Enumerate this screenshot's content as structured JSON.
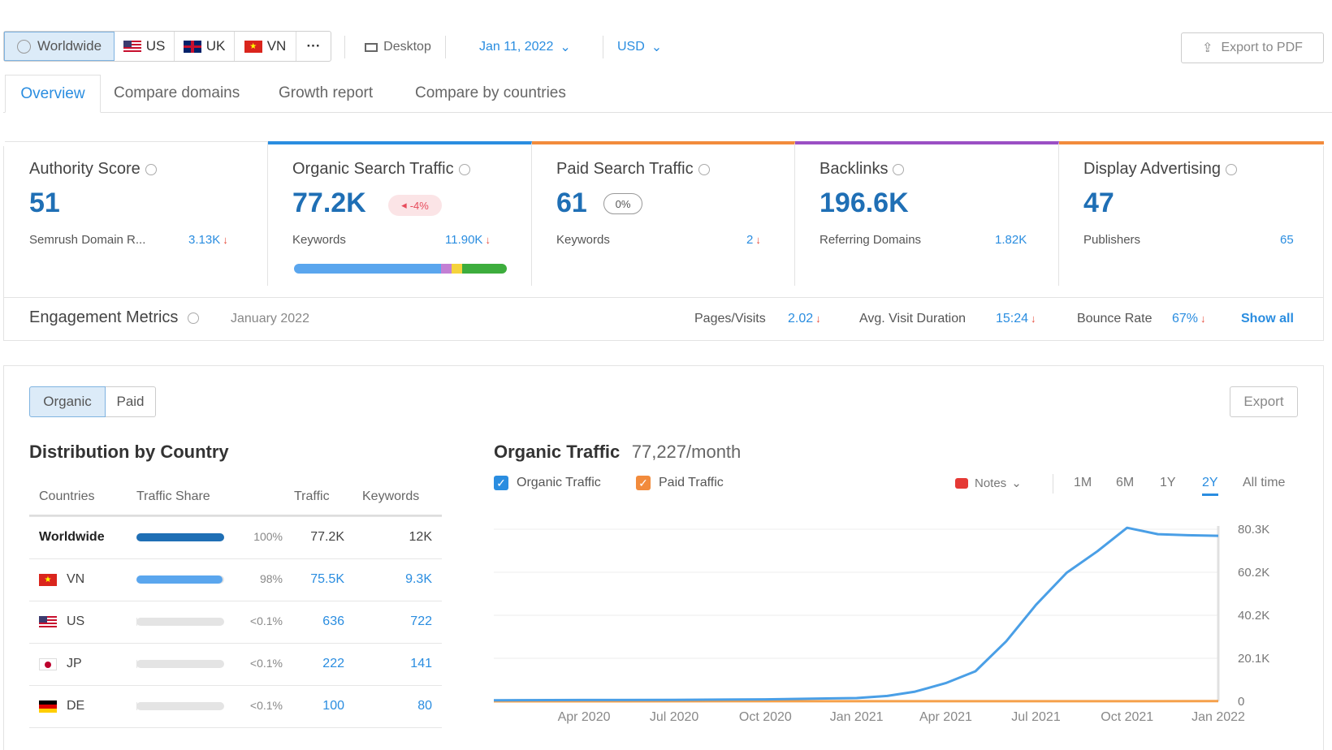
{
  "filters": {
    "regions": [
      "Worldwide",
      "US",
      "UK",
      "VN"
    ],
    "more": "···",
    "device": "Desktop",
    "date": "Jan 11, 2022",
    "currency": "USD",
    "export_pdf": "Export to PDF"
  },
  "tabs": [
    "Overview",
    "Compare domains",
    "Growth report",
    "Compare by countries"
  ],
  "cards": [
    {
      "title": "Authority Score",
      "value": "51",
      "sub_label": "Semrush Domain R...",
      "sub_value": "3.13K",
      "accent": "#e3e3e3"
    },
    {
      "title": "Organic Search Traffic",
      "value": "77.2K",
      "badge": "-4%",
      "sub_label": "Keywords",
      "sub_value": "11.90K",
      "accent": "#2a8de0"
    },
    {
      "title": "Paid Search Traffic",
      "value": "61",
      "badge": "0%",
      "sub_label": "Keywords",
      "sub_value": "2",
      "accent": "#f28b3c"
    },
    {
      "title": "Backlinks",
      "value": "196.6K",
      "sub_label": "Referring Domains",
      "sub_value": "1.82K",
      "accent": "#9b4fc4"
    },
    {
      "title": "Display Advertising",
      "value": "47",
      "sub_label": "Publishers",
      "sub_value": "65",
      "accent": "#f28b3c"
    }
  ],
  "keyword_distribution": [
    {
      "share": 69,
      "color": "#5aa6ee"
    },
    {
      "share": 5,
      "color": "#c37fd4"
    },
    {
      "share": 5,
      "color": "#f5d33c"
    },
    {
      "share": 21,
      "color": "#3dad3d"
    }
  ],
  "engagement": {
    "title": "Engagement Metrics",
    "period": "January 2022",
    "pages_label": "Pages/Visits",
    "pages_value": "2.02",
    "duration_label": "Avg. Visit Duration",
    "duration_value": "15:24",
    "bounce_label": "Bounce Rate",
    "bounce_value": "67%",
    "show_all": "Show all"
  },
  "toggle": {
    "organic": "Organic",
    "paid": "Paid",
    "export": "Export"
  },
  "distribution": {
    "title": "Distribution by Country",
    "headers": [
      "Countries",
      "Traffic Share",
      "Traffic",
      "Keywords"
    ],
    "rows": [
      {
        "country": "Worldwide",
        "flag": "globe",
        "share": "100%",
        "share_value": 100,
        "traffic": "77.2K",
        "keywords": "12K"
      },
      {
        "country": "VN",
        "flag": "vn",
        "share": "98%",
        "share_value": 98,
        "traffic": "75.5K",
        "keywords": "9.3K"
      },
      {
        "country": "US",
        "flag": "us",
        "share": "<0.1%",
        "share_value": 0.1,
        "traffic": "636",
        "keywords": "722"
      },
      {
        "country": "JP",
        "flag": "jp",
        "share": "<0.1%",
        "share_value": 0.1,
        "traffic": "222",
        "keywords": "141"
      },
      {
        "country": "DE",
        "flag": "de",
        "share": "<0.1%",
        "share_value": 0.1,
        "traffic": "100",
        "keywords": "80"
      }
    ]
  },
  "traffic_chart": {
    "title": "Organic Traffic",
    "subtitle": "77,227/month",
    "legend": [
      "Organic Traffic",
      "Paid Traffic"
    ],
    "notes": "Notes",
    "ranges": [
      "1M",
      "6M",
      "1Y",
      "2Y",
      "All time"
    ],
    "active_range": "2Y"
  },
  "chart_data": {
    "type": "line",
    "title": "Organic Traffic",
    "x_ticks": [
      "Apr 2020",
      "Jul 2020",
      "Oct 2020",
      "Jan 2021",
      "Apr 2021",
      "Jul 2021",
      "Oct 2021",
      "Jan 2022"
    ],
    "y_ticks": [
      "0",
      "20.1K",
      "40.2K",
      "60.2K",
      "80.3K"
    ],
    "ylim": [
      0,
      80300
    ],
    "series": [
      {
        "name": "Organic Traffic",
        "color": "#4a9fe6",
        "x": [
          "2020-01",
          "2020-04",
          "2020-07",
          "2020-10",
          "2021-01",
          "2021-02",
          "2021-03",
          "2021-04",
          "2021-05",
          "2021-06",
          "2021-07",
          "2021-08",
          "2021-09",
          "2021-10",
          "2021-11",
          "2021-12",
          "2022-01"
        ],
        "values": [
          500,
          600,
          700,
          900,
          1500,
          2500,
          4500,
          8500,
          14000,
          28000,
          45000,
          60000,
          70000,
          81000,
          78000,
          77500,
          77227
        ]
      },
      {
        "name": "Paid Traffic",
        "color": "#f5a04a",
        "x": [
          "2020-01",
          "2022-01"
        ],
        "values": [
          0,
          61
        ]
      }
    ]
  }
}
